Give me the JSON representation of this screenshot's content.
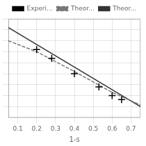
{
  "chart_data": {
    "type": "line",
    "xlabel": "1-s",
    "xlim": [
      0.05,
      0.75
    ],
    "xticks": [
      0.1,
      0.2,
      0.3,
      0.4,
      0.5,
      0.6,
      0.7
    ],
    "ylim": [
      0.1,
      1.0
    ],
    "yticks": [
      0.2,
      0.3,
      0.4,
      0.5,
      0.6,
      0.7,
      0.8,
      0.9,
      1.0
    ],
    "grid": true,
    "legend": "upper right",
    "tick_labels": "x",
    "series": [
      {
        "name": "Experi...",
        "type": "scatter",
        "marker": "plus",
        "color": "#000000",
        "x": [
          0.2,
          0.28,
          0.4,
          0.53,
          0.6,
          0.65
        ],
        "values": [
          0.72,
          0.64,
          0.5,
          0.38,
          0.3,
          0.265
        ]
      },
      {
        "name": "Theor...",
        "type": "line",
        "line_style": "dashed",
        "color": "#777777",
        "x": [
          0.05,
          0.2,
          0.4,
          0.6,
          0.75
        ],
        "values": [
          0.8,
          0.7,
          0.52,
          0.33,
          0.215
        ]
      },
      {
        "name": "Theor...",
        "type": "line",
        "line_style": "solid",
        "color": "#333333",
        "x": [
          0.05,
          0.75
        ],
        "values": [
          0.92,
          0.2
        ]
      }
    ]
  }
}
